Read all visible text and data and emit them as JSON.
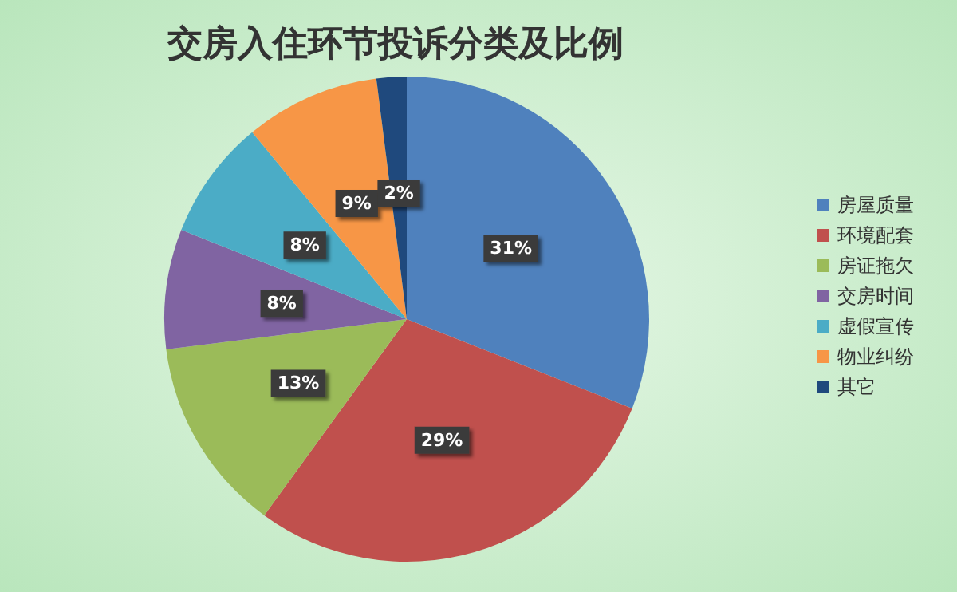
{
  "chart_data": {
    "type": "pie",
    "title": "交房入住环节投诉分类及比例",
    "categories": [
      "房屋质量",
      "环境配套",
      "房证拖欠",
      "交房时间",
      "虚假宣传",
      "物业纠纷",
      "其它"
    ],
    "values": [
      31,
      29,
      13,
      8,
      8,
      9,
      2
    ],
    "colors": [
      "#4f81bd",
      "#c0504d",
      "#9bbb59",
      "#8064a2",
      "#4bacc6",
      "#f79646",
      "#1f497d"
    ],
    "value_labels": [
      "31%",
      "29%",
      "13%",
      "8%",
      "8%",
      "9%",
      "2%"
    ],
    "legend": "right"
  }
}
